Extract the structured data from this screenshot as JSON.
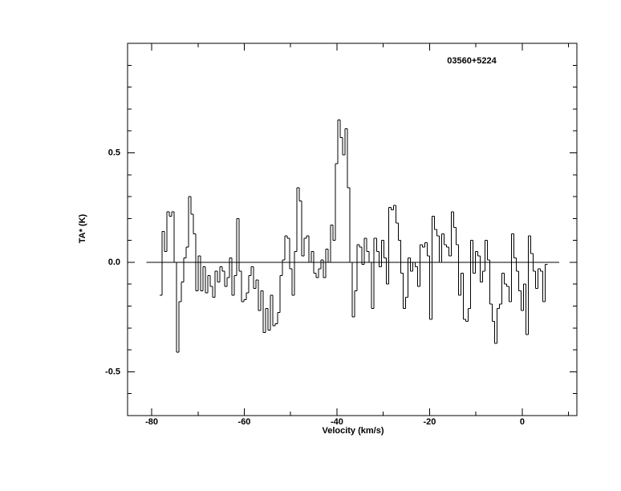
{
  "chart_data": {
    "type": "step",
    "title": "03560+5224",
    "x_label": "Velocity (km/s)",
    "y_label": "TA* (K)",
    "color": "#000000",
    "xlim": [
      -85.2,
      11.8
    ],
    "ylim": [
      -0.7,
      1.0
    ],
    "xticks": [
      -80,
      -60,
      -40,
      -20,
      0
    ],
    "xminorticks": [
      -70,
      -50,
      -30,
      -10,
      10
    ],
    "yticks": [
      -0.5,
      {
        "value": 0,
        "label": "0.0"
      },
      0.5
    ],
    "yminorticks": [
      -0.6,
      -0.4,
      -0.3,
      -0.2,
      -0.1,
      0.1,
      0.2,
      0.3,
      0.4,
      0.6,
      0.7,
      0.8,
      0.9
    ],
    "x": [
      -78.0,
      -77.48,
      -76.96,
      -76.44,
      -75.92,
      -75.4,
      -74.88,
      -74.36,
      -73.84,
      -73.32,
      -72.8,
      -72.28,
      -71.76,
      -71.24,
      -70.72,
      -70.2,
      -69.68,
      -69.16,
      -68.64,
      -68.12,
      -67.6,
      -67.08,
      -66.56,
      -66.04,
      -65.52,
      -65.0,
      -64.48,
      -63.96,
      -63.44,
      -62.92,
      -62.4,
      -61.88,
      -61.36,
      -60.84,
      -60.32,
      -59.8,
      -59.28,
      -58.76,
      -58.24,
      -57.72,
      -57.2,
      -56.68,
      -56.16,
      -55.64,
      -55.12,
      -54.6,
      -54.08,
      -53.56,
      -53.04,
      -52.52,
      -52.0,
      -51.48,
      -50.96,
      -50.44,
      -49.92,
      -49.4,
      -48.88,
      -48.36,
      -47.84,
      -47.32,
      -46.8,
      -46.28,
      -45.76,
      -45.24,
      -44.72,
      -44.2,
      -43.68,
      -43.16,
      -42.64,
      -42.12,
      -41.6,
      -41.08,
      -40.56,
      -40.04,
      -39.52,
      -39.0,
      -38.48,
      -37.96,
      -37.44,
      -36.92,
      -36.4,
      -35.88,
      -35.36,
      -34.84,
      -34.32,
      -33.8,
      -33.28,
      -32.76,
      -32.24,
      -31.72,
      -31.2,
      -30.68,
      -30.16,
      -29.64,
      -29.12,
      -28.6,
      -28.08,
      -27.56,
      -27.04,
      -26.52,
      -26.0,
      -25.48,
      -24.96,
      -24.44,
      -23.92,
      -23.4,
      -22.88,
      -22.36,
      -21.84,
      -21.32,
      -20.8,
      -20.28,
      -19.76,
      -19.24,
      -18.72,
      -18.2,
      -17.68,
      -17.16,
      -16.64,
      -16.12,
      -15.6,
      -15.08,
      -14.56,
      -14.04,
      -13.52,
      -13.0,
      -12.48,
      -11.96,
      -11.44,
      -10.92,
      -10.4,
      -9.88,
      -9.36,
      -8.84,
      -8.32,
      -7.8,
      -7.28,
      -6.76,
      -6.24,
      -5.72,
      -5.2,
      -4.68,
      -4.16,
      -3.64,
      -3.12,
      -2.6,
      -2.08,
      -1.56,
      -1.04,
      -0.52,
      0.0,
      0.52,
      1.04,
      1.56,
      2.08,
      2.6,
      3.12,
      3.64,
      4.16,
      4.68,
      5.2
    ],
    "values": [
      -0.15,
      0.14,
      0.05,
      0.23,
      0.21,
      0.23,
      0.0,
      -0.41,
      -0.18,
      -0.09,
      0.02,
      0.07,
      0.3,
      0.22,
      0.13,
      -0.13,
      0.03,
      -0.13,
      -0.02,
      -0.14,
      -0.06,
      -0.11,
      -0.16,
      -0.04,
      -0.09,
      -0.02,
      -0.04,
      -0.11,
      -0.07,
      0.02,
      -0.15,
      -0.06,
      0.2,
      -0.04,
      -0.18,
      -0.17,
      -0.14,
      -0.06,
      -0.02,
      -0.12,
      -0.08,
      -0.22,
      -0.13,
      -0.32,
      -0.21,
      -0.31,
      -0.15,
      -0.29,
      -0.28,
      -0.23,
      -0.06,
      0.01,
      0.12,
      0.11,
      -0.03,
      -0.15,
      0.05,
      0.34,
      0.28,
      0.03,
      0.11,
      0.12,
      0.0,
      0.05,
      -0.05,
      -0.07,
      -0.03,
      0.01,
      -0.07,
      0.06,
      0.0,
      0.17,
      0.1,
      0.45,
      0.65,
      0.57,
      0.49,
      0.61,
      0.34,
      0.0,
      -0.25,
      -0.13,
      0.08,
      0.07,
      -0.01,
      0.11,
      0.05,
      0.0,
      -0.21,
      0.11,
      0.05,
      -0.02,
      0.1,
      0.02,
      -0.1,
      0.25,
      0.24,
      0.26,
      0.18,
      0.1,
      -0.05,
      -0.21,
      -0.16,
      0.02,
      -0.04,
      0.0,
      -0.02,
      -0.11,
      0.08,
      0.07,
      0.09,
      0.03,
      -0.26,
      0.21,
      0.15,
      0.12,
      0.0,
      0.13,
      0.08,
      0.07,
      0.03,
      0.23,
      0.16,
      0.08,
      -0.15,
      -0.05,
      -0.26,
      -0.27,
      -0.21,
      0.1,
      -0.05,
      0.05,
      0.03,
      -0.09,
      -0.04,
      0.1,
      0.01,
      -0.19,
      -0.27,
      -0.37,
      -0.21,
      -0.19,
      -0.05,
      -0.1,
      -0.11,
      -0.18,
      0.13,
      0.02,
      -0.04,
      -0.13,
      -0.22,
      -0.1,
      -0.33,
      0.12,
      0.04,
      -0.04,
      -0.12,
      -0.03,
      -0.04,
      -0.18,
      -0.01
    ]
  }
}
